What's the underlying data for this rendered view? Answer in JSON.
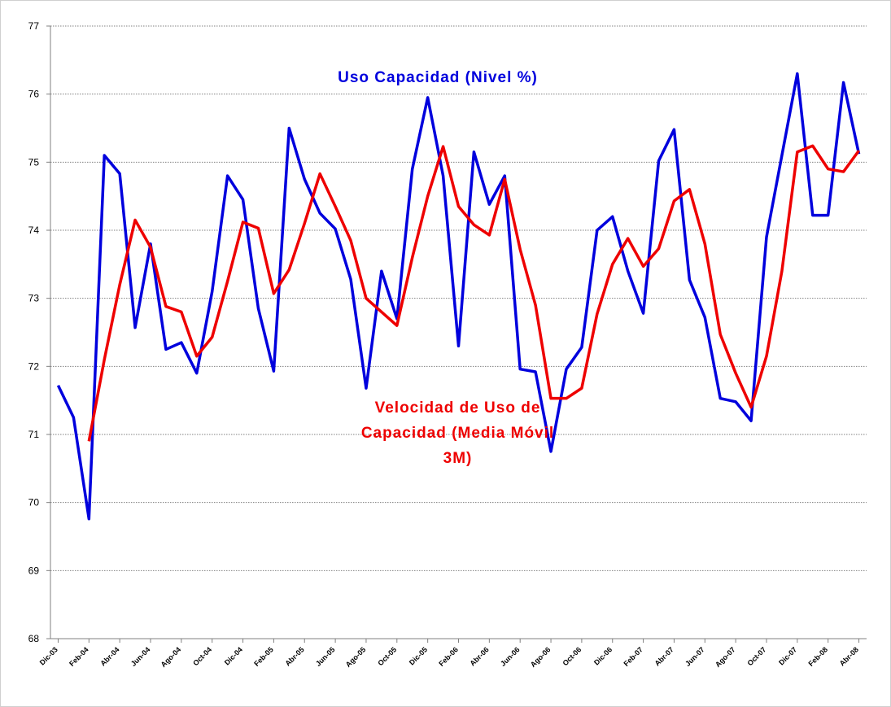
{
  "chart_data": {
    "type": "line",
    "categories": [
      "Dic-03",
      null,
      "Feb-04",
      null,
      "Abr-04",
      null,
      "Jun-04",
      null,
      "Ago-04",
      null,
      "Oct-04",
      null,
      "Dic-04",
      null,
      "Feb-05",
      null,
      "Abr-05",
      null,
      "Jun-05",
      null,
      "Ago-05",
      null,
      "Oct-05",
      null,
      "Dic-05",
      null,
      "Feb-06",
      null,
      "Abr-06",
      null,
      "Jun-06",
      null,
      "Ago-06",
      null,
      "Oct-06",
      null,
      "Dic-06",
      null,
      "Feb-07",
      null,
      "Abr-07",
      null,
      "Jun-07",
      null,
      "Ago-07",
      null,
      "Oct-07",
      null,
      "Dic-07",
      null,
      "Feb-08",
      null,
      "Abr-08"
    ],
    "series": [
      {
        "name": "Uso Capacidad (Nivel %)",
        "color": "#0000dd",
        "values": [
          71.72,
          71.25,
          69.76,
          75.1,
          74.83,
          72.57,
          73.8,
          72.25,
          72.35,
          71.9,
          73.1,
          74.8,
          74.45,
          72.85,
          71.93,
          75.5,
          74.75,
          74.25,
          74.02,
          73.28,
          71.68,
          73.4,
          72.7,
          74.9,
          75.95,
          74.8,
          72.3,
          75.15,
          74.38,
          74.8,
          71.96,
          71.92,
          70.75,
          71.96,
          72.28,
          74.0,
          74.2,
          73.4,
          72.78,
          75.02,
          75.48,
          73.27,
          72.72,
          71.53,
          71.48,
          71.2,
          73.9,
          75.1,
          76.3,
          74.22,
          74.22,
          76.17,
          75.12
        ]
      },
      {
        "name": "Velocidad de Uso de Capacidad (Media Móvil 3M)",
        "color": "#ee0000",
        "values": [
          null,
          null,
          70.9,
          72.1,
          73.2,
          74.15,
          73.75,
          72.88,
          72.8,
          72.15,
          72.43,
          73.25,
          74.12,
          74.03,
          73.07,
          73.42,
          74.1,
          74.83,
          74.35,
          73.85,
          73.0,
          72.8,
          72.6,
          73.6,
          74.5,
          75.23,
          74.35,
          74.08,
          73.93,
          74.75,
          73.72,
          72.9,
          71.53,
          71.53,
          71.68,
          72.77,
          73.5,
          73.88,
          73.47,
          73.73,
          74.43,
          74.6,
          73.8,
          72.47,
          71.9,
          71.4,
          72.15,
          73.4,
          75.15,
          75.24,
          74.9,
          74.86,
          75.17
        ]
      }
    ],
    "ylim": [
      68,
      77
    ],
    "yticks": [
      68,
      69,
      70,
      71,
      72,
      73,
      74,
      75,
      76,
      77
    ],
    "grid": true
  }
}
